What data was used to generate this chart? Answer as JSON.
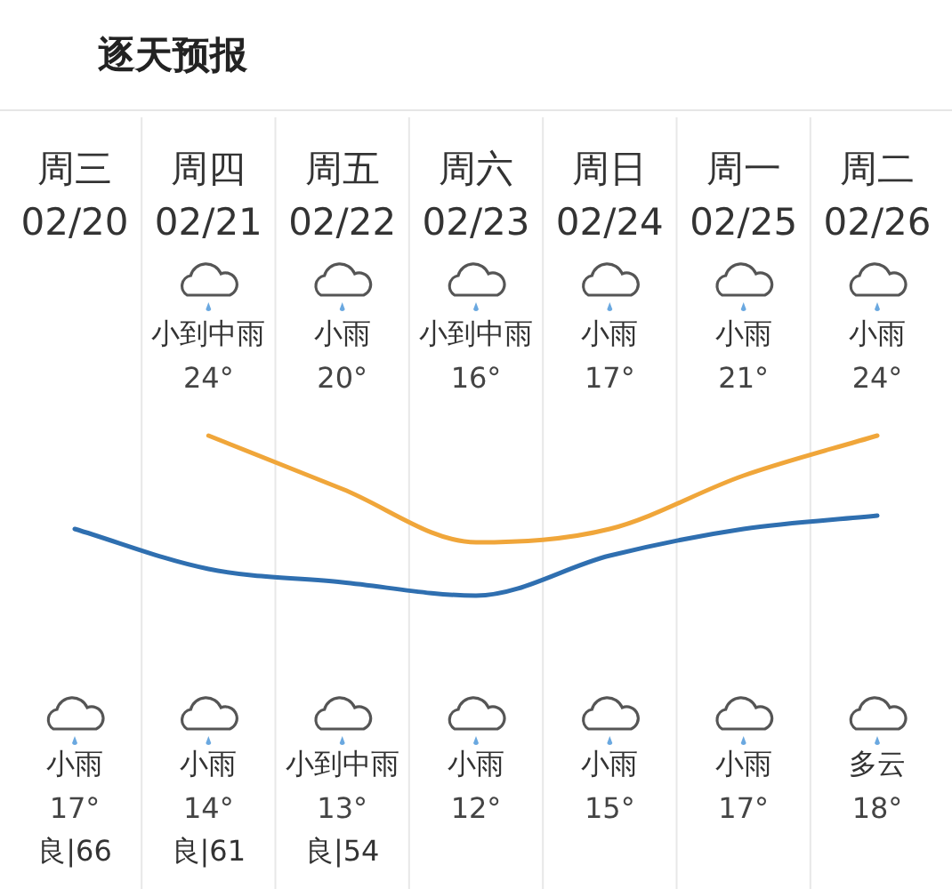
{
  "chart_data": {
    "type": "line",
    "title": "逐天预报",
    "categories": [
      "周三 02/20",
      "周四 02/21",
      "周五 02/22",
      "周六 02/23",
      "周日 02/24",
      "周一 02/25",
      "周二 02/26"
    ],
    "series": [
      {
        "color": "#f0a63a",
        "values": [
          null,
          24,
          20,
          16,
          17,
          21,
          24
        ],
        "value_labels": [
          null,
          "24°",
          "20°",
          "16°",
          "17°",
          "21°",
          "24°"
        ]
      },
      {
        "color": "#2f6fb0",
        "values": [
          17,
          14,
          13,
          12,
          15,
          17,
          18
        ],
        "value_labels": [
          "17°",
          "14°",
          "13°",
          "12°",
          "15°",
          "17°",
          "18°"
        ]
      }
    ],
    "annotations": [
      "小到中雨",
      "小雨",
      "小到中雨",
      "小雨",
      "小雨",
      "小雨",
      "小雨",
      "小雨",
      "小到中雨",
      "小雨",
      "小雨",
      "小雨",
      "多云",
      "良|66",
      "良|61",
      "良|54"
    ],
    "marker": "none",
    "line_style": "solid"
  }
}
